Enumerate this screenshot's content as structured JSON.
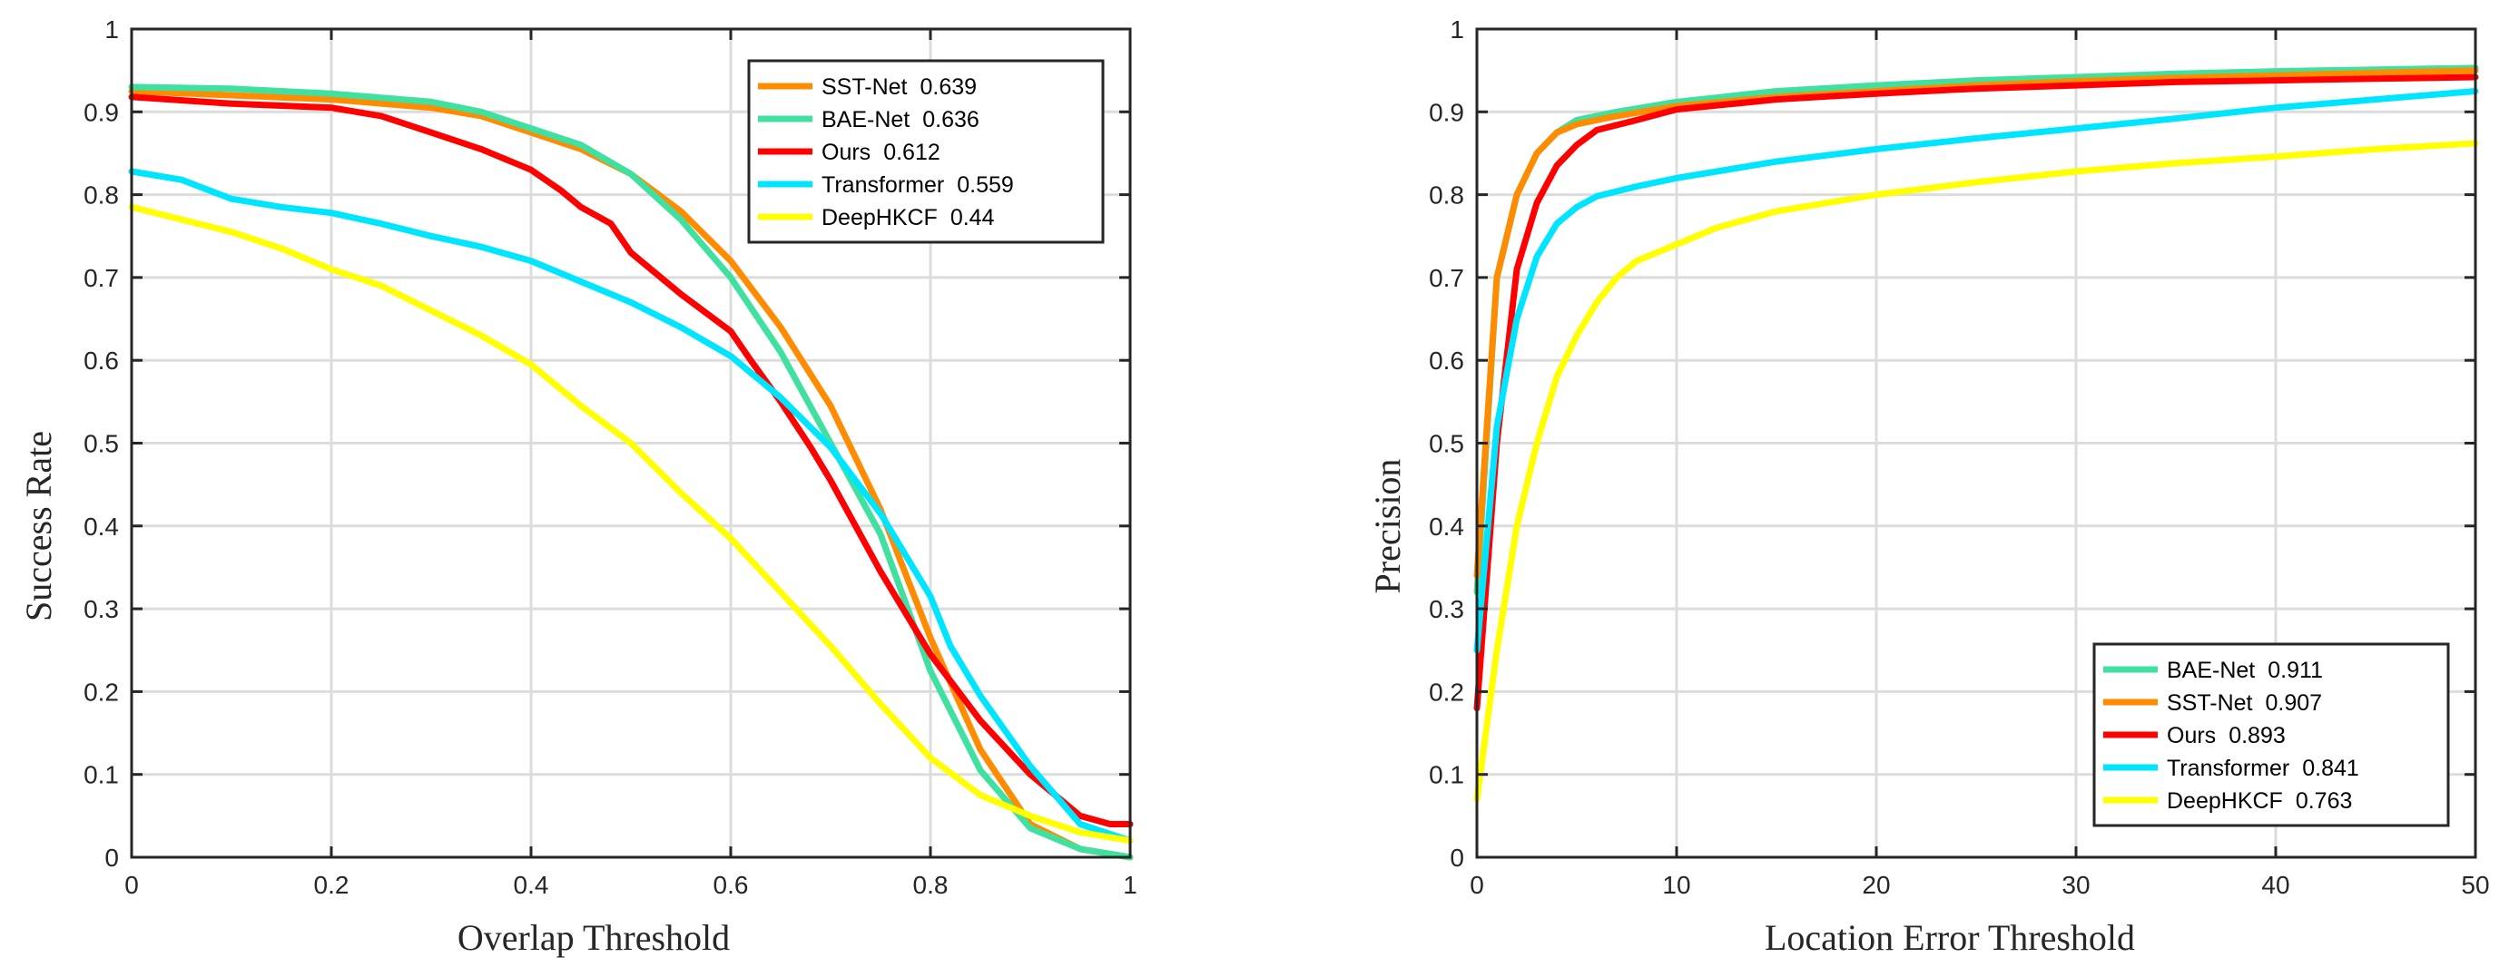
{
  "chart_data": [
    {
      "type": "line",
      "title": "",
      "xlabel": "Overlap Threshold",
      "ylabel": "Success Rate",
      "xlim": [
        0,
        1
      ],
      "ylim": [
        0,
        1
      ],
      "xticks": [
        0,
        0.2,
        0.4,
        0.6,
        0.8,
        1
      ],
      "xtick_labels": [
        "0",
        "0.2",
        "0.4",
        "0.6",
        "0.8",
        "1"
      ],
      "yticks": [
        0,
        0.1,
        0.2,
        0.3,
        0.4,
        0.5,
        0.6,
        0.7,
        0.8,
        0.9,
        1
      ],
      "ytick_labels": [
        "0",
        "0.1",
        "0.2",
        "0.3",
        "0.4",
        "0.5",
        "0.6",
        "0.7",
        "0.8",
        "0.9",
        "1"
      ],
      "grid": true,
      "legend_position": "top-right",
      "series": [
        {
          "name": "SST-Net",
          "score": "0.639",
          "color": "#ff8c00",
          "points": [
            [
              0,
              0.925
            ],
            [
              0.1,
              0.92
            ],
            [
              0.2,
              0.915
            ],
            [
              0.3,
              0.905
            ],
            [
              0.35,
              0.895
            ],
            [
              0.4,
              0.875
            ],
            [
              0.45,
              0.855
            ],
            [
              0.5,
              0.825
            ],
            [
              0.55,
              0.78
            ],
            [
              0.6,
              0.72
            ],
            [
              0.65,
              0.64
            ],
            [
              0.7,
              0.545
            ],
            [
              0.75,
              0.42
            ],
            [
              0.8,
              0.265
            ],
            [
              0.85,
              0.13
            ],
            [
              0.9,
              0.04
            ],
            [
              0.95,
              0.01
            ],
            [
              1,
              0.0
            ]
          ]
        },
        {
          "name": "BAE-Net",
          "score": "0.636",
          "color": "#40e0a0",
          "points": [
            [
              0,
              0.93
            ],
            [
              0.1,
              0.928
            ],
            [
              0.2,
              0.922
            ],
            [
              0.3,
              0.912
            ],
            [
              0.35,
              0.9
            ],
            [
              0.4,
              0.88
            ],
            [
              0.45,
              0.86
            ],
            [
              0.5,
              0.825
            ],
            [
              0.55,
              0.77
            ],
            [
              0.6,
              0.7
            ],
            [
              0.65,
              0.61
            ],
            [
              0.7,
              0.5
            ],
            [
              0.75,
              0.39
            ],
            [
              0.8,
              0.225
            ],
            [
              0.85,
              0.105
            ],
            [
              0.9,
              0.035
            ],
            [
              0.95,
              0.01
            ],
            [
              1,
              0.0
            ]
          ]
        },
        {
          "name": "Ours",
          "score": "0.612",
          "color": "#ff0000",
          "points": [
            [
              0,
              0.918
            ],
            [
              0.1,
              0.91
            ],
            [
              0.2,
              0.905
            ],
            [
              0.25,
              0.895
            ],
            [
              0.3,
              0.875
            ],
            [
              0.35,
              0.855
            ],
            [
              0.4,
              0.83
            ],
            [
              0.43,
              0.805
            ],
            [
              0.45,
              0.785
            ],
            [
              0.48,
              0.765
            ],
            [
              0.5,
              0.73
            ],
            [
              0.55,
              0.68
            ],
            [
              0.6,
              0.635
            ],
            [
              0.62,
              0.6
            ],
            [
              0.65,
              0.55
            ],
            [
              0.68,
              0.495
            ],
            [
              0.7,
              0.455
            ],
            [
              0.75,
              0.345
            ],
            [
              0.8,
              0.245
            ],
            [
              0.85,
              0.165
            ],
            [
              0.9,
              0.1
            ],
            [
              0.95,
              0.05
            ],
            [
              0.98,
              0.04
            ],
            [
              1,
              0.04
            ]
          ]
        },
        {
          "name": "Transformer",
          "score": "0.559",
          "color": "#00e5ff",
          "points": [
            [
              0,
              0.828
            ],
            [
              0.05,
              0.818
            ],
            [
              0.1,
              0.795
            ],
            [
              0.15,
              0.785
            ],
            [
              0.2,
              0.778
            ],
            [
              0.25,
              0.765
            ],
            [
              0.3,
              0.75
            ],
            [
              0.35,
              0.737
            ],
            [
              0.4,
              0.72
            ],
            [
              0.45,
              0.695
            ],
            [
              0.5,
              0.67
            ],
            [
              0.55,
              0.64
            ],
            [
              0.6,
              0.605
            ],
            [
              0.65,
              0.555
            ],
            [
              0.7,
              0.495
            ],
            [
              0.75,
              0.415
            ],
            [
              0.8,
              0.315
            ],
            [
              0.82,
              0.255
            ],
            [
              0.85,
              0.195
            ],
            [
              0.9,
              0.11
            ],
            [
              0.95,
              0.04
            ],
            [
              1,
              0.02
            ]
          ]
        },
        {
          "name": "DeepHKCF",
          "score": "0.44",
          "color": "#ffff00",
          "points": [
            [
              0,
              0.785
            ],
            [
              0.05,
              0.77
            ],
            [
              0.1,
              0.755
            ],
            [
              0.15,
              0.735
            ],
            [
              0.2,
              0.71
            ],
            [
              0.25,
              0.69
            ],
            [
              0.3,
              0.66
            ],
            [
              0.35,
              0.63
            ],
            [
              0.4,
              0.595
            ],
            [
              0.45,
              0.545
            ],
            [
              0.5,
              0.5
            ],
            [
              0.55,
              0.44
            ],
            [
              0.6,
              0.385
            ],
            [
              0.65,
              0.32
            ],
            [
              0.7,
              0.255
            ],
            [
              0.75,
              0.185
            ],
            [
              0.8,
              0.12
            ],
            [
              0.85,
              0.075
            ],
            [
              0.9,
              0.05
            ],
            [
              0.95,
              0.03
            ],
            [
              1,
              0.02
            ]
          ]
        }
      ]
    },
    {
      "type": "line",
      "title": "",
      "xlabel": "Location Error Threshold",
      "ylabel": "Precision",
      "xlim": [
        0,
        50
      ],
      "ylim": [
        0,
        1
      ],
      "xticks": [
        0,
        10,
        20,
        30,
        40,
        50
      ],
      "xtick_labels": [
        "0",
        "10",
        "20",
        "30",
        "40",
        "50"
      ],
      "yticks": [
        0,
        0.1,
        0.2,
        0.3,
        0.4,
        0.5,
        0.6,
        0.7,
        0.8,
        0.9,
        1
      ],
      "ytick_labels": [
        "0",
        "0.1",
        "0.2",
        "0.3",
        "0.4",
        "0.5",
        "0.6",
        "0.7",
        "0.8",
        "0.9",
        "1"
      ],
      "grid": true,
      "legend_position": "bottom-right",
      "series": [
        {
          "name": "BAE-Net",
          "score": "0.911",
          "color": "#40e0a0",
          "points": [
            [
              0,
              0.32
            ],
            [
              1,
              0.7
            ],
            [
              2,
              0.8
            ],
            [
              3,
              0.85
            ],
            [
              4,
              0.875
            ],
            [
              5,
              0.89
            ],
            [
              7,
              0.9
            ],
            [
              10,
              0.912
            ],
            [
              15,
              0.925
            ],
            [
              20,
              0.932
            ],
            [
              25,
              0.938
            ],
            [
              30,
              0.942
            ],
            [
              35,
              0.946
            ],
            [
              40,
              0.949
            ],
            [
              45,
              0.951
            ],
            [
              50,
              0.953
            ]
          ]
        },
        {
          "name": "SST-Net",
          "score": "0.907",
          "color": "#ff8c00",
          "points": [
            [
              0,
              0.34
            ],
            [
              1,
              0.7
            ],
            [
              2,
              0.8
            ],
            [
              3,
              0.85
            ],
            [
              4,
              0.875
            ],
            [
              5,
              0.885
            ],
            [
              7,
              0.895
            ],
            [
              10,
              0.907
            ],
            [
              15,
              0.918
            ],
            [
              20,
              0.925
            ],
            [
              25,
              0.932
            ],
            [
              30,
              0.937
            ],
            [
              35,
              0.941
            ],
            [
              40,
              0.944
            ],
            [
              45,
              0.947
            ],
            [
              50,
              0.95
            ]
          ]
        },
        {
          "name": "Ours",
          "score": "0.893",
          "color": "#ff0000",
          "points": [
            [
              0,
              0.18
            ],
            [
              1,
              0.5
            ],
            [
              2,
              0.71
            ],
            [
              3,
              0.79
            ],
            [
              4,
              0.835
            ],
            [
              5,
              0.86
            ],
            [
              6,
              0.878
            ],
            [
              8,
              0.89
            ],
            [
              10,
              0.903
            ],
            [
              15,
              0.915
            ],
            [
              20,
              0.922
            ],
            [
              25,
              0.928
            ],
            [
              30,
              0.932
            ],
            [
              35,
              0.936
            ],
            [
              40,
              0.938
            ],
            [
              45,
              0.94
            ],
            [
              50,
              0.942
            ]
          ]
        },
        {
          "name": "Transformer",
          "score": "0.841",
          "color": "#00e5ff",
          "points": [
            [
              0,
              0.25
            ],
            [
              1,
              0.52
            ],
            [
              2,
              0.65
            ],
            [
              3,
              0.725
            ],
            [
              4,
              0.765
            ],
            [
              5,
              0.785
            ],
            [
              6,
              0.798
            ],
            [
              8,
              0.81
            ],
            [
              10,
              0.82
            ],
            [
              15,
              0.84
            ],
            [
              20,
              0.855
            ],
            [
              25,
              0.868
            ],
            [
              30,
              0.88
            ],
            [
              35,
              0.892
            ],
            [
              40,
              0.905
            ],
            [
              45,
              0.915
            ],
            [
              50,
              0.925
            ]
          ]
        },
        {
          "name": "DeepHKCF",
          "score": "0.763",
          "color": "#ffff00",
          "points": [
            [
              0,
              0.07
            ],
            [
              1,
              0.25
            ],
            [
              2,
              0.4
            ],
            [
              3,
              0.5
            ],
            [
              4,
              0.58
            ],
            [
              5,
              0.63
            ],
            [
              6,
              0.67
            ],
            [
              7,
              0.7
            ],
            [
              8,
              0.72
            ],
            [
              10,
              0.74
            ],
            [
              12,
              0.76
            ],
            [
              15,
              0.78
            ],
            [
              20,
              0.8
            ],
            [
              25,
              0.815
            ],
            [
              30,
              0.828
            ],
            [
              35,
              0.838
            ],
            [
              40,
              0.846
            ],
            [
              45,
              0.855
            ],
            [
              50,
              0.862
            ]
          ]
        }
      ]
    }
  ]
}
